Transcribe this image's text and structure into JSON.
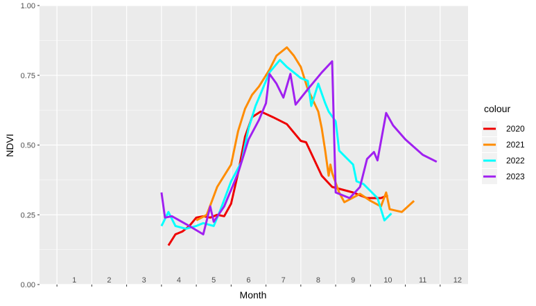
{
  "chart_data": {
    "type": "line",
    "xlabel": "Month",
    "ylabel": "NDVI",
    "xlim": [
      0.5,
      12.8
    ],
    "ylim": [
      0,
      1
    ],
    "y_ticks": [
      "0.00",
      "0.25",
      "0.50",
      "0.75",
      "1.00"
    ],
    "y_tick_values": [
      0,
      0.25,
      0.5,
      0.75,
      1.0
    ],
    "x_tick_labels": [
      "1",
      "2",
      "3",
      "4",
      "5",
      "6",
      "7",
      "8",
      "9",
      "10",
      "11",
      "12"
    ],
    "grid": true,
    "legend": {
      "title": "colour",
      "position": "right"
    },
    "series": [
      {
        "name": "2020",
        "color": "#ee0000",
        "points": [
          [
            4.2,
            0.14
          ],
          [
            4.4,
            0.18
          ],
          [
            4.6,
            0.19
          ],
          [
            4.8,
            0.21
          ],
          [
            5.0,
            0.24
          ],
          [
            5.2,
            0.245
          ],
          [
            5.4,
            0.24
          ],
          [
            5.6,
            0.25
          ],
          [
            5.8,
            0.245
          ],
          [
            6.0,
            0.29
          ],
          [
            6.2,
            0.4
          ],
          [
            6.4,
            0.53
          ],
          [
            6.6,
            0.6
          ],
          [
            6.85,
            0.62
          ],
          [
            7.2,
            0.6
          ],
          [
            7.6,
            0.575
          ],
          [
            8.0,
            0.515
          ],
          [
            8.15,
            0.51
          ],
          [
            8.6,
            0.39
          ],
          [
            8.9,
            0.35
          ],
          [
            9.5,
            0.33
          ],
          [
            9.9,
            0.31
          ],
          [
            10.3,
            0.31
          ],
          [
            10.5,
            0.32
          ]
        ]
      },
      {
        "name": "2021",
        "color": "#ff8c00",
        "points": [
          [
            5.0,
            0.23
          ],
          [
            5.3,
            0.25
          ],
          [
            5.6,
            0.35
          ],
          [
            6.0,
            0.43
          ],
          [
            6.2,
            0.55
          ],
          [
            6.4,
            0.63
          ],
          [
            6.6,
            0.68
          ],
          [
            6.8,
            0.71
          ],
          [
            7.1,
            0.77
          ],
          [
            7.3,
            0.82
          ],
          [
            7.6,
            0.85
          ],
          [
            7.8,
            0.82
          ],
          [
            8.0,
            0.78
          ],
          [
            8.2,
            0.7
          ],
          [
            8.5,
            0.62
          ],
          [
            8.6,
            0.56
          ],
          [
            8.7,
            0.48
          ],
          [
            8.8,
            0.39
          ],
          [
            8.85,
            0.43
          ],
          [
            8.9,
            0.4
          ],
          [
            9.1,
            0.33
          ],
          [
            9.25,
            0.295
          ],
          [
            9.7,
            0.325
          ],
          [
            10.0,
            0.3
          ],
          [
            10.3,
            0.28
          ],
          [
            10.45,
            0.33
          ],
          [
            10.55,
            0.27
          ],
          [
            10.9,
            0.26
          ],
          [
            11.25,
            0.3
          ]
        ]
      },
      {
        "name": "2022",
        "color": "#00ffff",
        "points": [
          [
            4.0,
            0.21
          ],
          [
            4.2,
            0.26
          ],
          [
            4.4,
            0.21
          ],
          [
            4.7,
            0.2
          ],
          [
            5.0,
            0.21
          ],
          [
            5.2,
            0.22
          ],
          [
            5.5,
            0.21
          ],
          [
            5.7,
            0.27
          ],
          [
            6.0,
            0.37
          ],
          [
            6.3,
            0.44
          ],
          [
            6.5,
            0.56
          ],
          [
            6.7,
            0.64
          ],
          [
            6.9,
            0.7
          ],
          [
            7.1,
            0.76
          ],
          [
            7.4,
            0.805
          ],
          [
            7.6,
            0.78
          ],
          [
            7.8,
            0.76
          ],
          [
            8.0,
            0.74
          ],
          [
            8.2,
            0.73
          ],
          [
            8.3,
            0.64
          ],
          [
            8.5,
            0.72
          ],
          [
            8.7,
            0.65
          ],
          [
            8.8,
            0.62
          ],
          [
            9.0,
            0.585
          ],
          [
            9.1,
            0.48
          ],
          [
            9.5,
            0.43
          ],
          [
            9.6,
            0.37
          ],
          [
            9.8,
            0.36
          ],
          [
            10.2,
            0.31
          ],
          [
            10.4,
            0.23
          ],
          [
            10.6,
            0.255
          ]
        ]
      },
      {
        "name": "2023",
        "color": "#a020f0",
        "points": [
          [
            4.0,
            0.33
          ],
          [
            4.1,
            0.24
          ],
          [
            4.3,
            0.245
          ],
          [
            4.8,
            0.21
          ],
          [
            5.2,
            0.18
          ],
          [
            5.4,
            0.28
          ],
          [
            5.5,
            0.225
          ],
          [
            5.8,
            0.28
          ],
          [
            6.2,
            0.4
          ],
          [
            6.5,
            0.52
          ],
          [
            6.8,
            0.59
          ],
          [
            7.0,
            0.65
          ],
          [
            7.1,
            0.755
          ],
          [
            7.3,
            0.72
          ],
          [
            7.5,
            0.67
          ],
          [
            7.7,
            0.755
          ],
          [
            7.85,
            0.645
          ],
          [
            8.2,
            0.7
          ],
          [
            8.6,
            0.76
          ],
          [
            8.9,
            0.8
          ],
          [
            9.0,
            0.33
          ],
          [
            9.4,
            0.31
          ],
          [
            9.7,
            0.35
          ],
          [
            9.9,
            0.45
          ],
          [
            10.1,
            0.475
          ],
          [
            10.2,
            0.445
          ],
          [
            10.45,
            0.615
          ],
          [
            10.65,
            0.57
          ],
          [
            11.0,
            0.52
          ],
          [
            11.5,
            0.465
          ],
          [
            11.9,
            0.44
          ]
        ]
      }
    ]
  }
}
